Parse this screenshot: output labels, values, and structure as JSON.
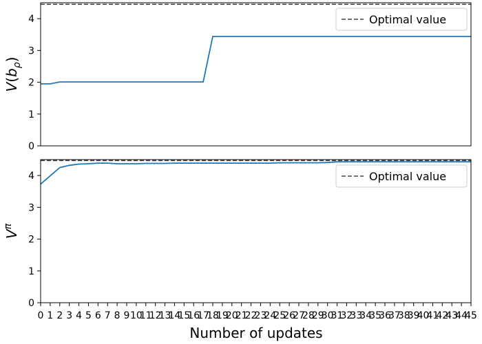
{
  "chart_data": [
    {
      "type": "line",
      "ylabel": "V(b_ρ)",
      "xlim": [
        0,
        45
      ],
      "ylim": [
        0,
        4.5
      ],
      "yticks": [
        0,
        1,
        2,
        3,
        4
      ],
      "show_xticks": false,
      "optimal_value": 4.45,
      "legend": {
        "label": "Optimal value",
        "placement": "top-right"
      },
      "series": [
        {
          "name": "",
          "x": [
            0,
            1,
            2,
            3,
            4,
            5,
            6,
            7,
            8,
            9,
            10,
            11,
            12,
            13,
            14,
            15,
            16,
            17,
            18,
            19,
            20,
            21,
            22,
            23,
            24,
            25,
            26,
            27,
            28,
            29,
            30,
            31,
            32,
            33,
            34,
            35,
            36,
            37,
            38,
            39,
            40,
            41,
            42,
            43,
            44,
            45
          ],
          "y": [
            1.95,
            1.95,
            2.01,
            2.01,
            2.01,
            2.01,
            2.01,
            2.01,
            2.01,
            2.01,
            2.01,
            2.01,
            2.01,
            2.01,
            2.01,
            2.01,
            2.01,
            2.01,
            3.44,
            3.44,
            3.44,
            3.44,
            3.44,
            3.44,
            3.44,
            3.44,
            3.44,
            3.44,
            3.44,
            3.44,
            3.44,
            3.44,
            3.44,
            3.44,
            3.44,
            3.44,
            3.44,
            3.44,
            3.44,
            3.44,
            3.44,
            3.44,
            3.44,
            3.44,
            3.44,
            3.44
          ]
        }
      ]
    },
    {
      "type": "line",
      "ylabel": "V^π",
      "xlabel": "Number of updates",
      "xlim": [
        0,
        45
      ],
      "ylim": [
        0,
        4.5
      ],
      "yticks": [
        0,
        1,
        2,
        3,
        4
      ],
      "show_xticks": true,
      "xticks": [
        0,
        1,
        2,
        3,
        4,
        5,
        6,
        7,
        8,
        9,
        10,
        11,
        12,
        13,
        14,
        15,
        16,
        17,
        18,
        19,
        20,
        21,
        22,
        23,
        24,
        25,
        26,
        27,
        28,
        29,
        30,
        31,
        32,
        33,
        34,
        35,
        36,
        37,
        38,
        39,
        40,
        41,
        42,
        43,
        44,
        45
      ],
      "optimal_value": 4.47,
      "legend": {
        "label": "Optimal value",
        "placement": "top-right"
      },
      "series": [
        {
          "name": "",
          "x": [
            0,
            1,
            2,
            3,
            4,
            5,
            6,
            7,
            8,
            9,
            10,
            11,
            12,
            13,
            14,
            15,
            16,
            17,
            18,
            19,
            20,
            21,
            22,
            23,
            24,
            25,
            26,
            27,
            28,
            29,
            30,
            31,
            32,
            33,
            34,
            35,
            36,
            37,
            38,
            39,
            40,
            41,
            42,
            43,
            44,
            45
          ],
          "y": [
            3.73,
            3.99,
            4.25,
            4.32,
            4.36,
            4.37,
            4.39,
            4.39,
            4.37,
            4.37,
            4.37,
            4.38,
            4.38,
            4.38,
            4.39,
            4.39,
            4.39,
            4.39,
            4.39,
            4.39,
            4.39,
            4.39,
            4.39,
            4.39,
            4.39,
            4.4,
            4.4,
            4.4,
            4.4,
            4.4,
            4.41,
            4.43,
            4.43,
            4.43,
            4.43,
            4.43,
            4.43,
            4.43,
            4.43,
            4.43,
            4.43,
            4.43,
            4.43,
            4.43,
            4.43,
            4.43
          ]
        }
      ]
    }
  ],
  "colors": {
    "series": "#1f77b4",
    "optimal": "#404040"
  }
}
